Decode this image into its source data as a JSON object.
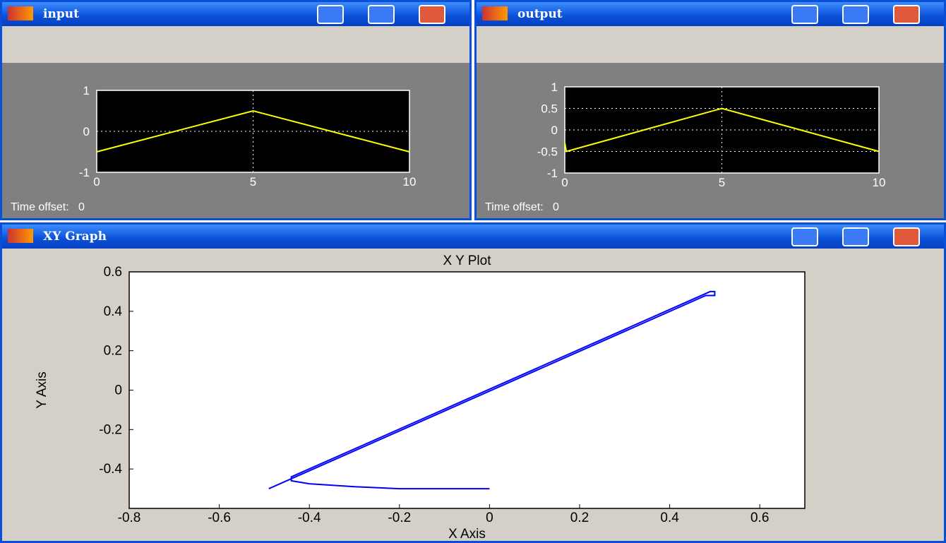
{
  "windows": [
    {
      "title": "input",
      "time_offset_label": "Time offset:",
      "time_offset_value": 0
    },
    {
      "title": "output",
      "time_offset_label": "Time offset:",
      "time_offset_value": 0
    },
    {
      "title": "XY Graph"
    }
  ],
  "chart_data": [
    {
      "type": "line",
      "xlim": [
        0,
        10
      ],
      "ylim": [
        -1,
        1
      ],
      "xticks": [
        0,
        5,
        10
      ],
      "yticks": [
        -1,
        0,
        1
      ],
      "grid": true,
      "series": [
        {
          "color": "#ffff00",
          "x": [
            0,
            5,
            10
          ],
          "values": [
            -0.5,
            0.5,
            -0.5
          ]
        }
      ]
    },
    {
      "type": "line",
      "xlim": [
        0,
        10
      ],
      "ylim": [
        -1,
        1
      ],
      "xticks": [
        0,
        5,
        10
      ],
      "yticks": [
        -1,
        -0.5,
        0,
        0.5,
        1
      ],
      "grid": true,
      "series": [
        {
          "color": "#ffff00",
          "x": [
            0,
            0.05,
            5,
            10
          ],
          "values": [
            -0.3,
            -0.5,
            0.5,
            -0.5
          ]
        }
      ]
    },
    {
      "type": "line",
      "title": "X Y Plot",
      "x_label": "X Axis",
      "y_label": "Y Axis",
      "xlim": [
        -0.8,
        0.7
      ],
      "ylim": [
        -0.6,
        0.6
      ],
      "xticks": [
        -0.8,
        -0.6,
        -0.4,
        -0.2,
        0,
        0.2,
        0.4,
        0.6
      ],
      "yticks": [
        -0.4,
        -0.2,
        0,
        0.2,
        0.4,
        0.6
      ],
      "grid": false,
      "series": [
        {
          "color": "#0000ff",
          "x": [
            0,
            -0.2,
            -0.3,
            -0.4,
            -0.44,
            -0.44,
            0.49,
            0.5,
            0.5,
            0.48,
            -0.49
          ],
          "values": [
            -0.5,
            -0.5,
            -0.49,
            -0.475,
            -0.46,
            -0.44,
            0.5,
            0.5,
            0.48,
            0.48,
            -0.5
          ]
        }
      ]
    }
  ]
}
